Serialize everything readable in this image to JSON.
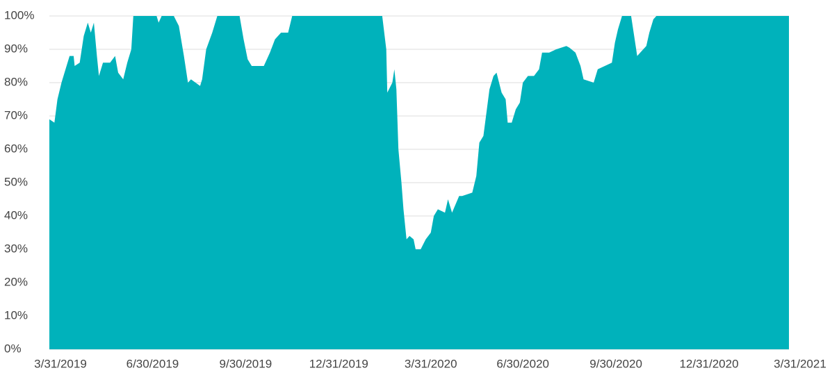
{
  "chart_data": {
    "type": "area",
    "color": "#00b2bb",
    "grid": true,
    "x": [
      "3/31/2019",
      "4/5/2019",
      "4/8/2019",
      "4/12/2019",
      "4/16/2019",
      "4/20/2019",
      "4/24/2019",
      "4/25/2019",
      "4/30/2019",
      "5/4/2019",
      "5/8/2019",
      "5/11/2019",
      "5/14/2019",
      "5/17/2019",
      "5/19/2019",
      "5/23/2019",
      "5/30/2019",
      "6/4/2019",
      "6/7/2019",
      "6/12/2019",
      "6/16/2019",
      "6/20/2019",
      "6/22/2019",
      "7/15/2019",
      "7/17/2019",
      "7/20/2019",
      "8/1/2019",
      "8/6/2019",
      "8/11/2019",
      "8/15/2019",
      "8/18/2019",
      "8/27/2019",
      "8/29/2019",
      "9/2/2019",
      "9/8/2019",
      "9/13/2019",
      "10/5/2019",
      "10/9/2019",
      "10/13/2019",
      "10/17/2019",
      "10/29/2019",
      "11/4/2019",
      "11/9/2019",
      "11/15/2019",
      "11/22/2019",
      "11/26/2019",
      "2/23/2020",
      "2/27/2020",
      "2/28/2020",
      "3/4/2020",
      "3/6/2020",
      "3/8/2020",
      "3/10/2020",
      "3/13/2020",
      "3/15/2020",
      "3/18/2020",
      "3/21/2020",
      "3/25/2020",
      "3/27/2020",
      "4/1/2020",
      "4/6/2020",
      "4/11/2020",
      "4/14/2020",
      "4/18/2020",
      "4/25/2020",
      "4/28/2020",
      "5/2/2020",
      "5/9/2020",
      "5/12/2020",
      "5/22/2020",
      "5/26/2020",
      "5/29/2020",
      "6/2/2020",
      "6/5/2020",
      "6/8/2020",
      "6/12/2020",
      "6/15/2020",
      "6/20/2020",
      "6/24/2020",
      "6/26/2020",
      "6/30/2020",
      "7/4/2020",
      "7/8/2020",
      "7/11/2020",
      "7/16/2020",
      "7/22/2020",
      "7/27/2020",
      "7/30/2020",
      "8/6/2020",
      "8/13/2020",
      "8/23/2020",
      "8/26/2020",
      "9/1/2020",
      "9/6/2020",
      "9/9/2020",
      "9/19/2020",
      "9/23/2020",
      "9/30/2020",
      "10/7/2020",
      "10/10/2020",
      "10/13/2020",
      "10/17/2020",
      "10/26/2020",
      "10/29/2020",
      "11/1/2020",
      "11/7/2020",
      "11/10/2020",
      "11/13/2020",
      "11/17/2020",
      "11/20/2020",
      "3/31/2021"
    ],
    "values": [
      69,
      68,
      75,
      80,
      84,
      88,
      88,
      85,
      86,
      94,
      98,
      95,
      98,
      88,
      82,
      86,
      86,
      88,
      83,
      81,
      86,
      90,
      100,
      100,
      98,
      100,
      100,
      97,
      88,
      80,
      81,
      79,
      81,
      90,
      95,
      100,
      100,
      93,
      87,
      85,
      85,
      89,
      93,
      95,
      95,
      100,
      100,
      90,
      77,
      80,
      84,
      78,
      60,
      50,
      42,
      33,
      34,
      33,
      30,
      30,
      33,
      35,
      40,
      42,
      41,
      45,
      41,
      46,
      46,
      47,
      52,
      62,
      64,
      71,
      78,
      82,
      83,
      77,
      75,
      68,
      68,
      72,
      74,
      80,
      82,
      82,
      84,
      89,
      89,
      90,
      91,
      90.5,
      89,
      85,
      81,
      80,
      84,
      85,
      86,
      92,
      96,
      100,
      100,
      94,
      88,
      90,
      91,
      95,
      99,
      100,
      100
    ],
    "xlim": [
      "3/31/2019",
      "3/31/2021"
    ],
    "xticks": [
      "3/31/2019",
      "6/30/2019",
      "9/30/2019",
      "12/31/2019",
      "3/31/2020",
      "6/30/2020",
      "9/30/2020",
      "12/31/2020",
      "3/31/2021"
    ],
    "ylim": [
      0,
      100
    ],
    "yticks": [
      {
        "value": 0,
        "label": "0%"
      },
      {
        "value": 10,
        "label": "10%"
      },
      {
        "value": 20,
        "label": "20%"
      },
      {
        "value": 30,
        "label": "30%"
      },
      {
        "value": 40,
        "label": "40%"
      },
      {
        "value": 50,
        "label": "50%"
      },
      {
        "value": 60,
        "label": "60%"
      },
      {
        "value": 70,
        "label": "70%"
      },
      {
        "value": 80,
        "label": "80%"
      },
      {
        "value": 90,
        "label": "90%"
      },
      {
        "value": 100,
        "label": "100%"
      }
    ]
  }
}
